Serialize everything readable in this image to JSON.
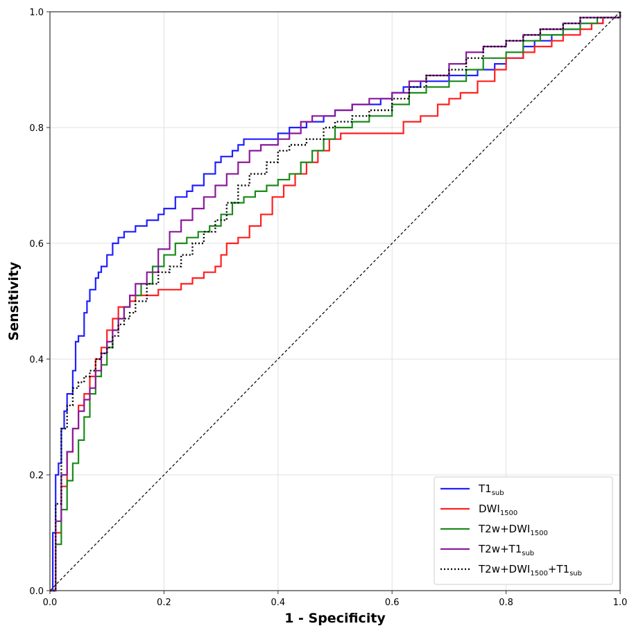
{
  "chart_data": {
    "type": "line",
    "xlabel": "1 - Specificity",
    "ylabel": "Sensitivity",
    "xlim": [
      0.0,
      1.0
    ],
    "ylim": [
      0.0,
      1.0
    ],
    "x_ticks": [
      "0.0",
      "0.2",
      "0.4",
      "0.6",
      "0.8",
      "1.0"
    ],
    "y_ticks": [
      "0.0",
      "0.2",
      "0.4",
      "0.6",
      "0.8",
      "1.0"
    ],
    "grid": true,
    "legend_position": "bottom-right",
    "reference_line": {
      "x": [
        0,
        1
      ],
      "y": [
        0,
        1
      ],
      "style": "dashed",
      "color": "#000000"
    },
    "series": [
      {
        "name": "T1",
        "name_sub": "sub",
        "color": "#1f1fff",
        "style": "solid",
        "x": [
          0.0,
          0.005,
          0.01,
          0.015,
          0.02,
          0.025,
          0.03,
          0.04,
          0.045,
          0.05,
          0.06,
          0.065,
          0.07,
          0.08,
          0.085,
          0.09,
          0.1,
          0.11,
          0.12,
          0.13,
          0.15,
          0.16,
          0.17,
          0.19,
          0.2,
          0.22,
          0.24,
          0.25,
          0.27,
          0.29,
          0.3,
          0.32,
          0.33,
          0.34,
          0.36,
          0.38,
          0.4,
          0.42,
          0.45,
          0.48,
          0.5,
          0.53,
          0.55,
          0.58,
          0.6,
          0.62,
          0.65,
          0.68,
          0.7,
          0.73,
          0.75,
          0.78,
          0.8,
          0.83,
          0.85,
          0.88,
          0.9,
          0.93,
          0.95,
          0.97,
          1.0
        ],
        "y": [
          0.0,
          0.1,
          0.2,
          0.22,
          0.28,
          0.31,
          0.34,
          0.38,
          0.43,
          0.44,
          0.48,
          0.5,
          0.52,
          0.54,
          0.55,
          0.56,
          0.58,
          0.6,
          0.61,
          0.62,
          0.63,
          0.63,
          0.64,
          0.65,
          0.66,
          0.68,
          0.69,
          0.7,
          0.72,
          0.74,
          0.75,
          0.76,
          0.77,
          0.78,
          0.78,
          0.78,
          0.79,
          0.8,
          0.81,
          0.82,
          0.83,
          0.84,
          0.84,
          0.85,
          0.86,
          0.87,
          0.88,
          0.88,
          0.89,
          0.89,
          0.9,
          0.91,
          0.92,
          0.94,
          0.95,
          0.96,
          0.97,
          0.98,
          0.98,
          0.99,
          1.0
        ]
      },
      {
        "name": "DWI",
        "name_sub": "1500",
        "color": "#ff1f1f",
        "style": "solid",
        "x": [
          0.0,
          0.01,
          0.02,
          0.03,
          0.04,
          0.05,
          0.06,
          0.07,
          0.08,
          0.09,
          0.1,
          0.11,
          0.12,
          0.13,
          0.14,
          0.15,
          0.17,
          0.19,
          0.21,
          0.23,
          0.25,
          0.27,
          0.29,
          0.3,
          0.31,
          0.33,
          0.35,
          0.37,
          0.39,
          0.41,
          0.43,
          0.45,
          0.47,
          0.49,
          0.51,
          0.53,
          0.56,
          0.6,
          0.62,
          0.65,
          0.68,
          0.7,
          0.72,
          0.75,
          0.78,
          0.8,
          0.83,
          0.85,
          0.88,
          0.9,
          0.93,
          0.95,
          0.97,
          1.0
        ],
        "y": [
          0.0,
          0.1,
          0.18,
          0.24,
          0.28,
          0.32,
          0.34,
          0.37,
          0.4,
          0.42,
          0.45,
          0.47,
          0.49,
          0.49,
          0.5,
          0.51,
          0.51,
          0.52,
          0.52,
          0.53,
          0.54,
          0.55,
          0.56,
          0.58,
          0.6,
          0.61,
          0.63,
          0.65,
          0.68,
          0.7,
          0.72,
          0.74,
          0.76,
          0.78,
          0.79,
          0.79,
          0.79,
          0.79,
          0.81,
          0.82,
          0.84,
          0.85,
          0.86,
          0.88,
          0.9,
          0.92,
          0.93,
          0.94,
          0.95,
          0.96,
          0.97,
          0.98,
          0.99,
          1.0
        ]
      },
      {
        "name": "T2w+DWI",
        "name_sub": "1500",
        "color": "#1a8a1a",
        "style": "solid",
        "x": [
          0.0,
          0.01,
          0.02,
          0.03,
          0.04,
          0.05,
          0.06,
          0.07,
          0.08,
          0.09,
          0.1,
          0.11,
          0.12,
          0.13,
          0.14,
          0.16,
          0.18,
          0.2,
          0.22,
          0.24,
          0.26,
          0.28,
          0.3,
          0.32,
          0.34,
          0.36,
          0.38,
          0.4,
          0.42,
          0.44,
          0.46,
          0.48,
          0.5,
          0.53,
          0.56,
          0.6,
          0.63,
          0.66,
          0.7,
          0.73,
          0.76,
          0.8,
          0.83,
          0.86,
          0.9,
          0.93,
          0.96,
          1.0
        ],
        "y": [
          0.0,
          0.08,
          0.14,
          0.19,
          0.22,
          0.26,
          0.3,
          0.34,
          0.37,
          0.39,
          0.42,
          0.45,
          0.47,
          0.49,
          0.51,
          0.53,
          0.56,
          0.58,
          0.6,
          0.61,
          0.62,
          0.63,
          0.65,
          0.67,
          0.68,
          0.69,
          0.7,
          0.71,
          0.72,
          0.74,
          0.76,
          0.78,
          0.8,
          0.81,
          0.82,
          0.84,
          0.86,
          0.87,
          0.88,
          0.9,
          0.92,
          0.93,
          0.95,
          0.96,
          0.97,
          0.98,
          0.99,
          1.0
        ]
      },
      {
        "name": "T2w+T1",
        "name_sub": "sub",
        "color": "#8a1a9a",
        "style": "solid",
        "x": [
          0.0,
          0.01,
          0.02,
          0.03,
          0.04,
          0.05,
          0.06,
          0.07,
          0.08,
          0.09,
          0.1,
          0.11,
          0.12,
          0.13,
          0.14,
          0.15,
          0.17,
          0.19,
          0.21,
          0.23,
          0.25,
          0.27,
          0.29,
          0.31,
          0.33,
          0.35,
          0.37,
          0.4,
          0.42,
          0.44,
          0.46,
          0.48,
          0.5,
          0.53,
          0.56,
          0.6,
          0.63,
          0.66,
          0.7,
          0.73,
          0.76,
          0.8,
          0.83,
          0.86,
          0.9,
          0.93,
          0.96,
          1.0
        ],
        "y": [
          0.0,
          0.12,
          0.2,
          0.24,
          0.28,
          0.31,
          0.33,
          0.35,
          0.38,
          0.41,
          0.43,
          0.45,
          0.47,
          0.49,
          0.51,
          0.53,
          0.55,
          0.59,
          0.62,
          0.64,
          0.66,
          0.68,
          0.7,
          0.72,
          0.74,
          0.76,
          0.77,
          0.78,
          0.79,
          0.81,
          0.82,
          0.82,
          0.83,
          0.84,
          0.85,
          0.86,
          0.88,
          0.89,
          0.91,
          0.93,
          0.94,
          0.95,
          0.96,
          0.97,
          0.98,
          0.99,
          0.99,
          1.0
        ]
      },
      {
        "name": "T2w+DWI",
        "name_sub": "1500",
        "name_suffix": "+T1",
        "name_suffix_sub": "sub",
        "color": "#000000",
        "style": "dotted",
        "x": [
          0.0,
          0.01,
          0.02,
          0.03,
          0.04,
          0.05,
          0.06,
          0.07,
          0.08,
          0.09,
          0.1,
          0.11,
          0.12,
          0.13,
          0.14,
          0.15,
          0.17,
          0.19,
          0.21,
          0.23,
          0.25,
          0.27,
          0.29,
          0.31,
          0.33,
          0.35,
          0.38,
          0.4,
          0.42,
          0.45,
          0.48,
          0.5,
          0.53,
          0.56,
          0.6,
          0.63,
          0.66,
          0.7,
          0.73,
          0.76,
          0.8,
          0.83,
          0.86,
          0.9,
          0.93,
          0.96,
          1.0
        ],
        "y": [
          0.0,
          0.15,
          0.28,
          0.32,
          0.35,
          0.36,
          0.37,
          0.38,
          0.4,
          0.41,
          0.42,
          0.44,
          0.46,
          0.47,
          0.48,
          0.5,
          0.53,
          0.55,
          0.56,
          0.58,
          0.6,
          0.62,
          0.64,
          0.67,
          0.7,
          0.72,
          0.74,
          0.76,
          0.77,
          0.78,
          0.8,
          0.81,
          0.82,
          0.83,
          0.85,
          0.87,
          0.89,
          0.9,
          0.92,
          0.94,
          0.95,
          0.96,
          0.97,
          0.98,
          0.99,
          0.99,
          1.0
        ]
      }
    ]
  }
}
